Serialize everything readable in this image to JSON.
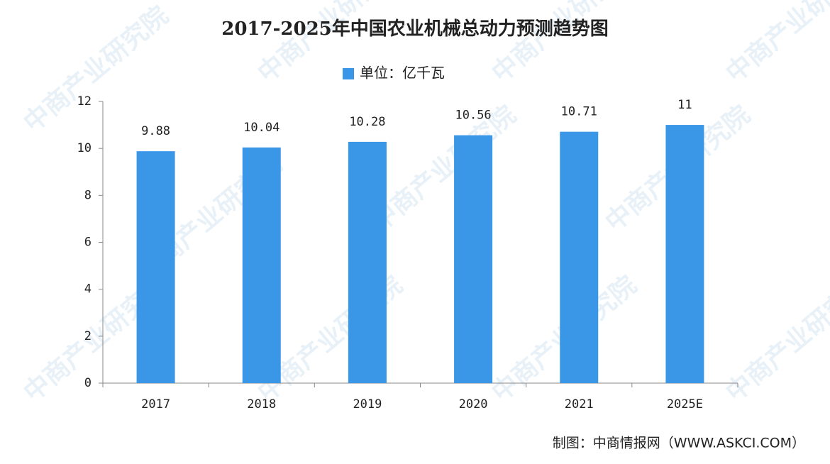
{
  "chart_data": {
    "type": "bar",
    "title": "2017-2025年中国农业机械总动力预测趋势图",
    "categories": [
      "2017",
      "2018",
      "2019",
      "2020",
      "2021",
      "2025E"
    ],
    "series": [
      {
        "name": "单位：亿千瓦",
        "color": "#3a96e6",
        "values": [
          9.88,
          10.04,
          10.28,
          10.56,
          10.71,
          11
        ]
      }
    ],
    "ylim": [
      0,
      12
    ],
    "yticks": [
      0,
      2,
      4,
      6,
      8,
      10,
      12
    ],
    "grid": false,
    "source": "制图：中商情报网（WWW.ASKCI.COM）",
    "watermark": "中商产业研究院"
  }
}
